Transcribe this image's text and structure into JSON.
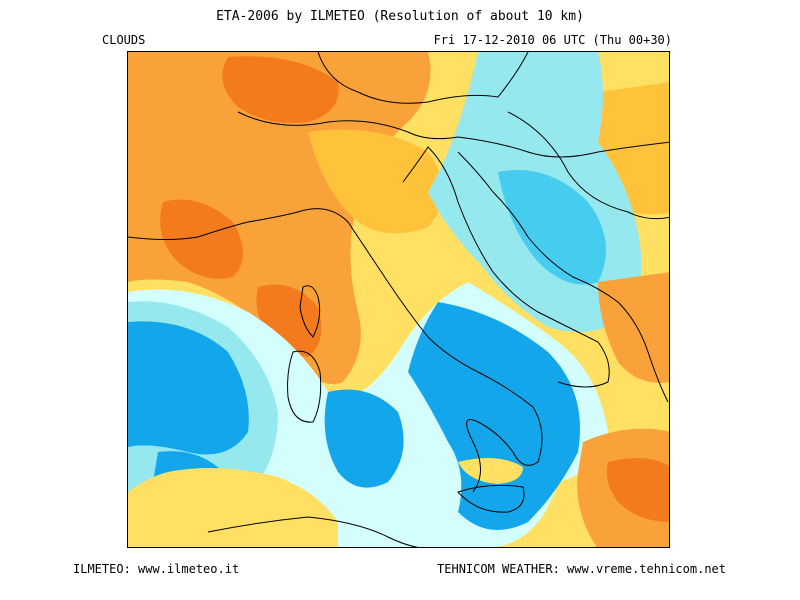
{
  "header": {
    "title": "ETA-2006 by ILMETEO (Resolution of about 10 km)",
    "layer": "CLOUDS",
    "valid_time": "Fri 17-12-2010 06 UTC (Thu 00+30)"
  },
  "footer": {
    "left": "ILMETEO: www.ilmeteo.it",
    "right": "TEHNICOM WEATHER: www.vreme.tehnicom.net"
  },
  "palette": {
    "background": "#ffffff",
    "deep_orange": "#f47a1e",
    "orange": "#f9a23a",
    "gold": "#ffc23a",
    "yellow": "#ffe063",
    "pale_yellow": "#fff7b7",
    "pale_cyan": "#d4fdfd",
    "light_cyan": "#95e8ee",
    "cyan": "#45ccee",
    "blue": "#14a6ea",
    "coastline": "#000000"
  }
}
